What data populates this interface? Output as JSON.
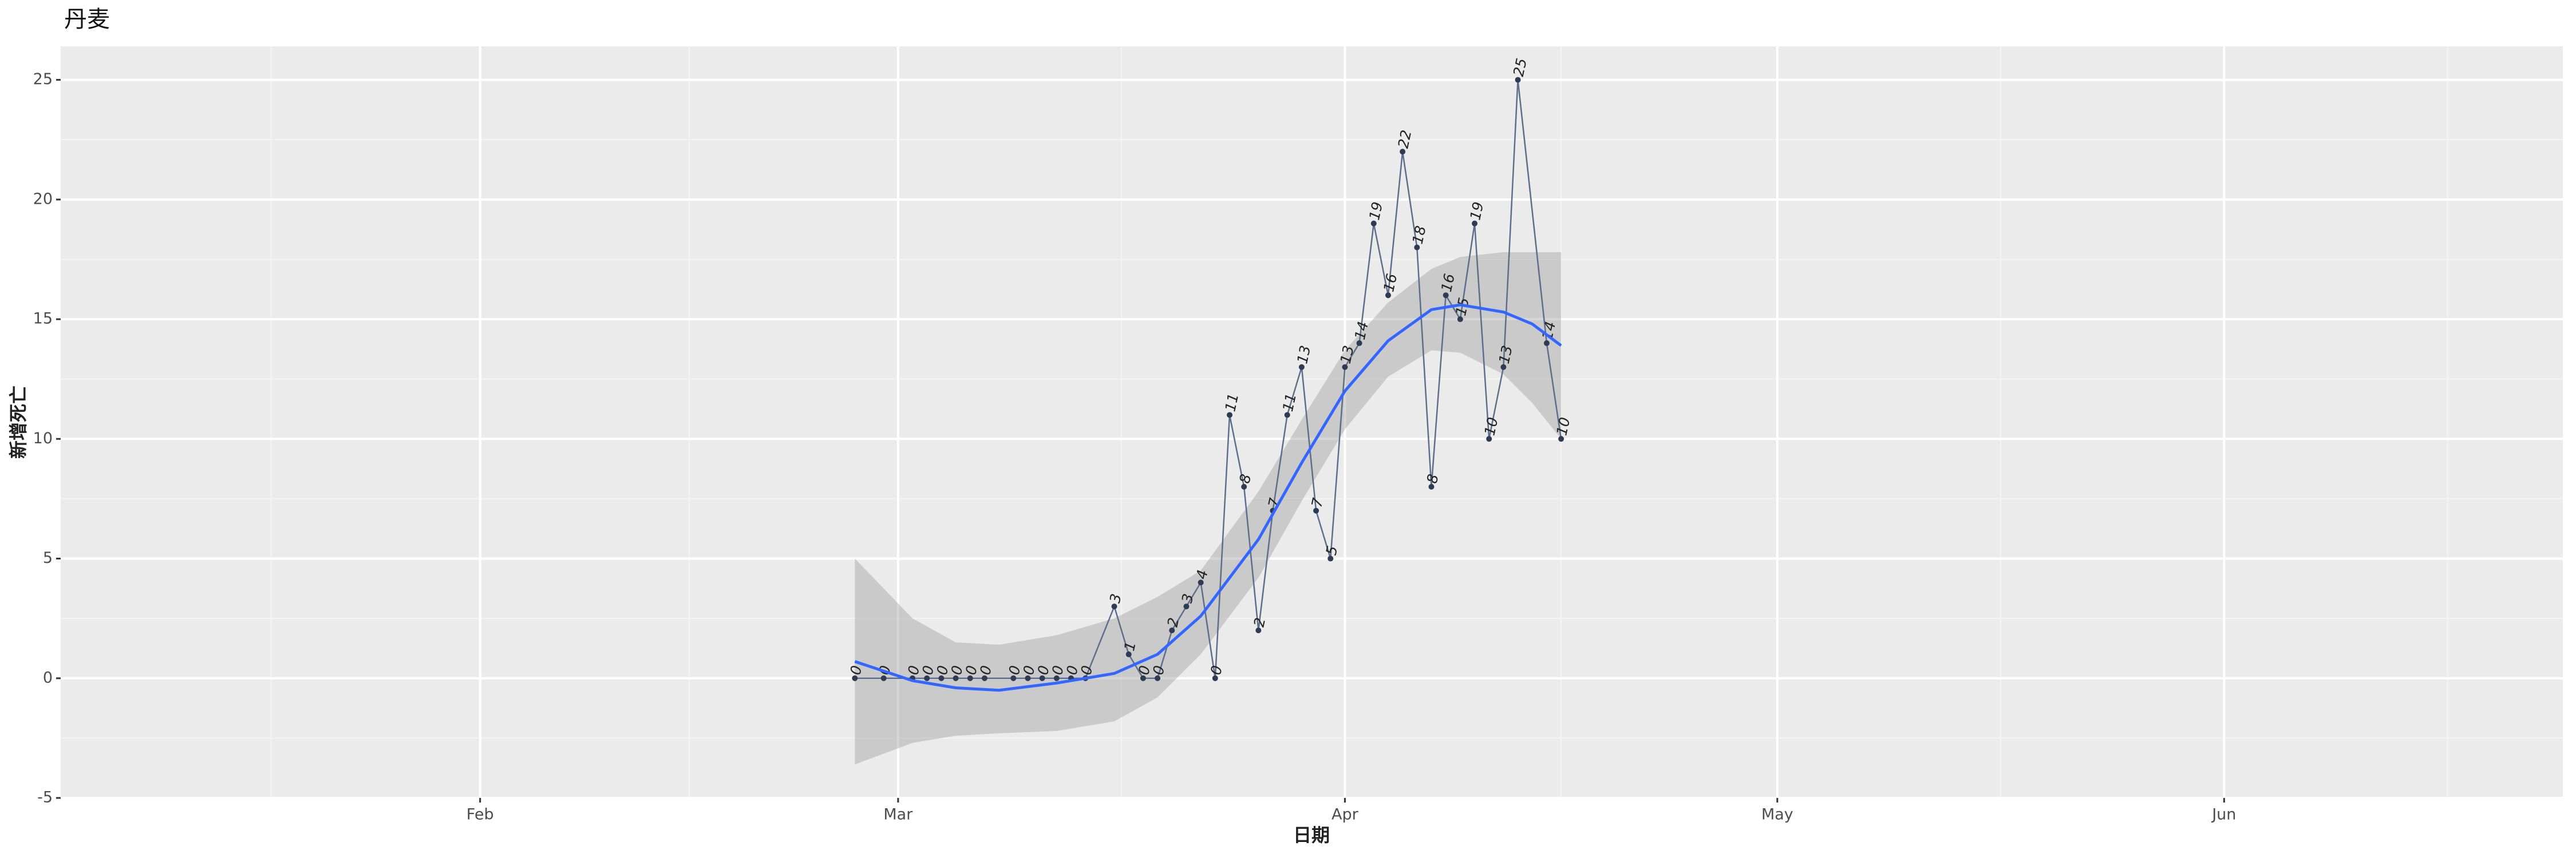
{
  "chart_data": {
    "type": "line",
    "title": "丹麦",
    "x_label": "日期",
    "y_label": "新增死亡",
    "x": [
      58,
      60,
      62,
      63,
      64,
      65,
      66,
      67,
      69,
      70,
      71,
      72,
      73,
      74,
      76,
      77,
      78,
      79,
      80,
      81,
      82,
      83,
      84,
      85,
      86,
      87,
      88,
      89,
      90,
      91,
      92,
      93,
      94,
      95,
      96,
      97,
      98,
      99,
      100,
      101,
      102,
      103,
      104,
      106,
      107
    ],
    "series": [
      {
        "color": "#5d6d8c",
        "values": [
          0,
          0,
          0,
          0,
          0,
          0,
          0,
          0,
          0,
          0,
          0,
          0,
          0,
          0,
          3,
          1,
          0,
          0,
          2,
          3,
          4,
          0,
          11,
          8,
          2,
          7,
          11,
          13,
          7,
          5,
          13,
          14,
          19,
          16,
          22,
          18,
          8,
          16,
          15,
          19,
          10,
          13,
          25,
          14,
          10
        ]
      }
    ],
    "smooth": {
      "color": "#3366ff",
      "x": [
        58,
        62,
        65,
        68,
        72,
        76,
        79,
        82,
        86,
        89,
        92,
        95,
        98,
        100,
        103,
        105,
        107
      ],
      "values": [
        0.7,
        -0.1,
        -0.4,
        -0.5,
        -0.2,
        0.2,
        1.0,
        2.6,
        5.8,
        9.0,
        12.0,
        14.1,
        15.4,
        15.6,
        15.3,
        14.8,
        13.9
      ],
      "lower": [
        -3.6,
        -2.7,
        -2.4,
        -2.3,
        -2.2,
        -1.8,
        -0.8,
        1.0,
        4.2,
        7.4,
        10.4,
        12.6,
        13.7,
        13.6,
        12.7,
        11.5,
        10.0
      ],
      "upper": [
        5.0,
        2.5,
        1.5,
        1.4,
        1.8,
        2.5,
        3.4,
        4.5,
        7.8,
        10.8,
        13.7,
        15.7,
        17.1,
        17.6,
        17.8,
        17.8,
        17.8
      ]
    },
    "xlim": [
      2.9,
      176.5
    ],
    "xticks": [
      {
        "value": 32,
        "label": "Feb"
      },
      {
        "value": 61,
        "label": "Mar"
      },
      {
        "value": 92,
        "label": "Apr"
      },
      {
        "value": 122,
        "label": "May"
      },
      {
        "value": 153,
        "label": "Jun"
      }
    ],
    "ylim": [
      -5,
      26.4
    ],
    "yticks": [
      -5,
      0,
      5,
      10,
      15,
      20,
      25
    ],
    "grid": true
  }
}
